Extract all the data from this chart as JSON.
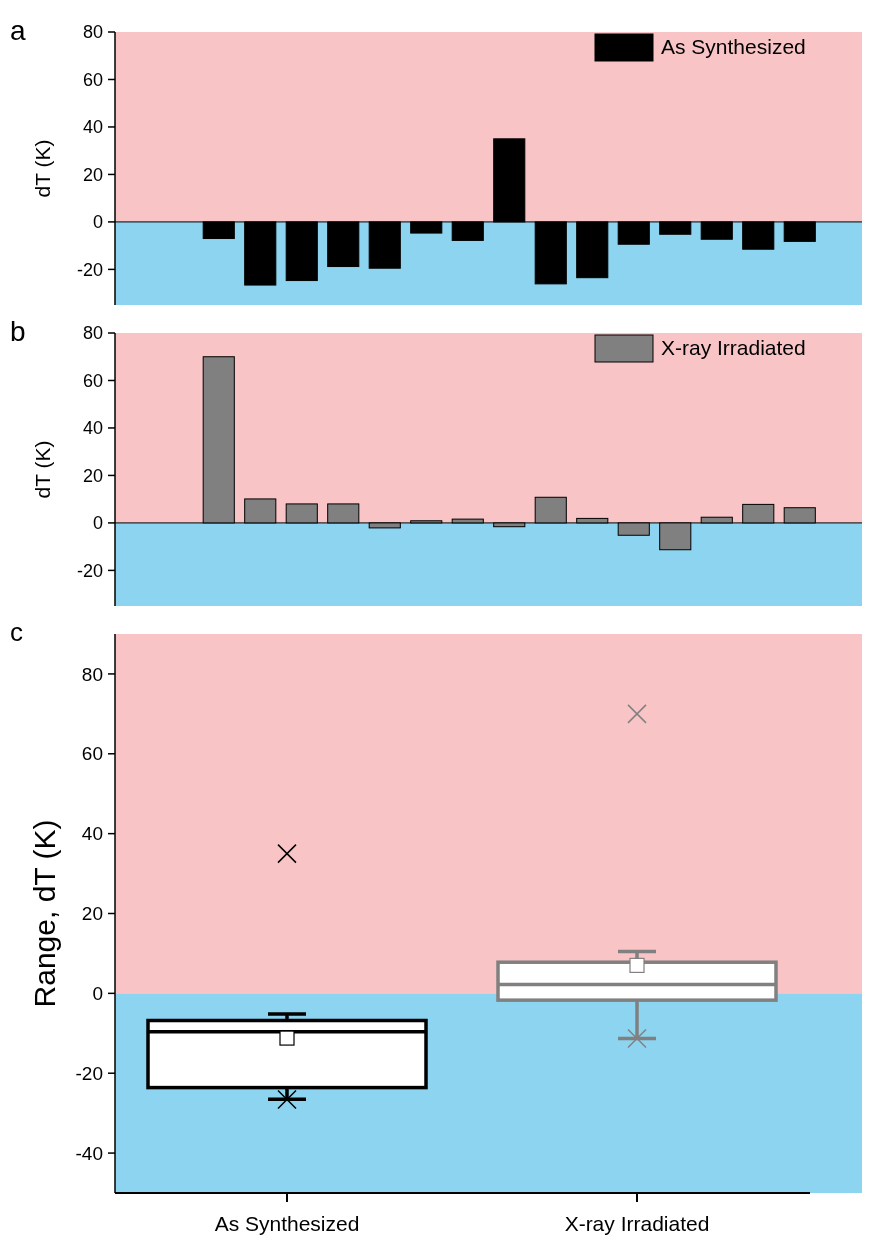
{
  "chart_data": [
    {
      "type": "bar",
      "title": "a",
      "ylabel": "dT (K)",
      "categories": [
        null,
        null,
        null,
        null,
        null,
        null,
        null,
        null,
        null,
        null,
        null,
        null,
        null,
        null,
        null,
        null,
        null,
        null
      ],
      "series": [
        {
          "name": "As Synthesized",
          "color": "#000000",
          "values": [
            null,
            null,
            -7,
            -26.6,
            -24.7,
            -18.8,
            -19.5,
            -4.7,
            -7.8,
            35,
            -26.1,
            -23.5,
            -9.4,
            -5.2,
            -7.3,
            -11.5,
            -8.2,
            null
          ]
        }
      ],
      "ylim": [
        -35,
        80
      ],
      "yticks": [
        -20,
        0,
        20,
        40,
        60,
        80
      ],
      "tick_labels": "y",
      "legend": "top right",
      "bands": [
        {
          "axis": "y",
          "from": 0,
          "to": 80,
          "color": "#f8c4c6"
        },
        {
          "axis": "y",
          "from": -35,
          "to": 0,
          "color": "#8dd4f1"
        }
      ]
    },
    {
      "type": "bar",
      "title": "b",
      "ylabel": "dT (K)",
      "categories": [
        null,
        null,
        null,
        null,
        null,
        null,
        null,
        null,
        null,
        null,
        null,
        null,
        null,
        null,
        null,
        null,
        null,
        null
      ],
      "series": [
        {
          "name": "X-ray Irradiated",
          "color": "#808080",
          "values": [
            null,
            null,
            70,
            10.1,
            8,
            8,
            -2.1,
            0.9,
            1.6,
            -1.6,
            10.8,
            1.9,
            -5.2,
            -11.3,
            2.4,
            7.8,
            6.4,
            null
          ]
        }
      ],
      "ylim": [
        -35,
        80
      ],
      "yticks": [
        -20,
        0,
        20,
        40,
        60,
        80
      ],
      "tick_labels": "y",
      "legend": "top right",
      "bands": [
        {
          "axis": "y",
          "from": 0,
          "to": 80,
          "color": "#f8c4c6"
        },
        {
          "axis": "y",
          "from": -35,
          "to": 0,
          "color": "#8dd4f1"
        }
      ]
    },
    {
      "type": "box",
      "title": "c",
      "ylabel": "Range, dT (K)",
      "categories": [
        "As Synthesized",
        "X-ray Irradiated"
      ],
      "colors": [
        "#000000",
        "#808080"
      ],
      "boxes": [
        {
          "low": -26.5,
          "q1": -23.6,
          "median": -9.6,
          "q3": -6.8,
          "high": -5.2,
          "mean": -11.2,
          "outliers": [
            35,
            -26.6
          ]
        },
        {
          "low": -11.3,
          "q1": -1.7,
          "median": 2.2,
          "q3": 7.8,
          "high": 10.5,
          "mean": 7,
          "outliers": [
            70,
            -11.3
          ]
        }
      ],
      "ylim": [
        -50,
        90
      ],
      "yticks": [
        -40,
        -20,
        0,
        20,
        40,
        60,
        80
      ],
      "bands": [
        {
          "axis": "y",
          "from": 0,
          "to": 90,
          "color": "#f8c4c6"
        },
        {
          "axis": "y",
          "from": -50,
          "to": 0,
          "color": "#8dd4f1"
        }
      ]
    }
  ]
}
